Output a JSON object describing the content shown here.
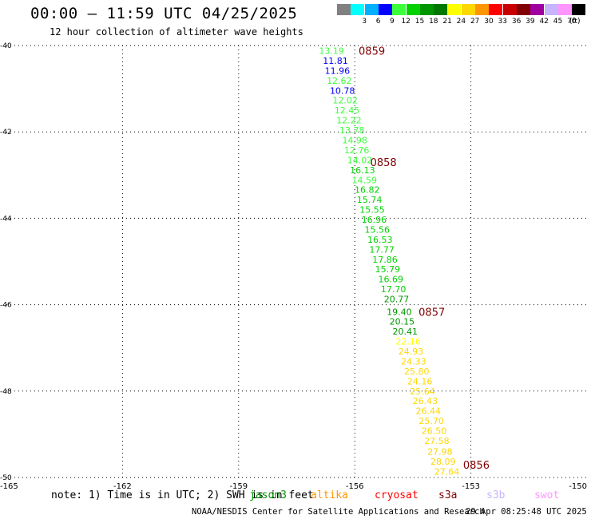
{
  "title": "00:00 – 11:59 UTC 04/25/2025",
  "subtitle": "12 hour collection of altimeter wave heights",
  "legend": {
    "unit": "(ft)",
    "entries": [
      {
        "label": "",
        "color": "#808080"
      },
      {
        "label": "3",
        "color": "#00ffff"
      },
      {
        "label": "6",
        "color": "#00b0ff"
      },
      {
        "label": "9",
        "color": "#0000ff"
      },
      {
        "label": "12",
        "color": "#3cff3c"
      },
      {
        "label": "15",
        "color": "#00d200"
      },
      {
        "label": "18",
        "color": "#009600"
      },
      {
        "label": "21",
        "color": "#007800"
      },
      {
        "label": "24",
        "color": "#ffff00"
      },
      {
        "label": "27",
        "color": "#ffd700"
      },
      {
        "label": "30",
        "color": "#ff9600"
      },
      {
        "label": "33",
        "color": "#ff0000"
      },
      {
        "label": "36",
        "color": "#c80000"
      },
      {
        "label": "39",
        "color": "#820000"
      },
      {
        "label": "42",
        "color": "#a000a0"
      },
      {
        "label": "45",
        "color": "#c8b4ff"
      },
      {
        "label": "70",
        "color": "#ff96ff"
      },
      {
        "label": "",
        "color": "#000000"
      }
    ]
  },
  "map": {
    "lon_range": [
      -165,
      -150
    ],
    "lat_range": [
      -50,
      -40
    ],
    "lon_ticks": [
      {
        "value": -165,
        "label": "-165"
      },
      {
        "value": -162,
        "label": "-162"
      },
      {
        "value": -159,
        "label": "-159"
      },
      {
        "value": -156,
        "label": "-156"
      },
      {
        "value": -153,
        "label": "-153"
      },
      {
        "value": -150,
        "label": "-150"
      }
    ],
    "lat_ticks": [
      {
        "value": -40,
        "label": "-40"
      },
      {
        "value": -42,
        "label": "-42"
      },
      {
        "value": -44,
        "label": "-44"
      },
      {
        "value": -46,
        "label": "-46"
      },
      {
        "value": -48,
        "label": "-48"
      },
      {
        "value": -50,
        "label": "-50"
      }
    ],
    "time_labels": [
      {
        "text": "0859",
        "lon": -155.9,
        "lat": -40.12
      },
      {
        "text": "0858",
        "lon": -155.6,
        "lat": -42.7
      },
      {
        "text": "0857",
        "lon": -154.35,
        "lat": -46.16
      },
      {
        "text": "0856",
        "lon": -153.2,
        "lat": -49.7
      }
    ],
    "observations": [
      {
        "value": "13.19",
        "lon": -156.6,
        "lat": -40.12,
        "color": "#3cff3c"
      },
      {
        "value": "11.81",
        "lon": -156.5,
        "lat": -40.35,
        "color": "#0000ff"
      },
      {
        "value": "11.96",
        "lon": -156.45,
        "lat": -40.58,
        "color": "#0000ff"
      },
      {
        "value": "12.62",
        "lon": -156.4,
        "lat": -40.81,
        "color": "#3cff3c"
      },
      {
        "value": "10.78",
        "lon": -156.32,
        "lat": -41.04,
        "color": "#0000ff"
      },
      {
        "value": "12.02",
        "lon": -156.25,
        "lat": -41.27,
        "color": "#3cff3c"
      },
      {
        "value": "12.45",
        "lon": -156.2,
        "lat": -41.5,
        "color": "#3cff3c"
      },
      {
        "value": "12.22",
        "lon": -156.15,
        "lat": -41.73,
        "color": "#3cff3c"
      },
      {
        "value": "13.78",
        "lon": -156.07,
        "lat": -41.96,
        "color": "#3cff3c"
      },
      {
        "value": "14.98",
        "lon": -156.0,
        "lat": -42.19,
        "color": "#3cff3c"
      },
      {
        "value": "12.76",
        "lon": -155.95,
        "lat": -42.42,
        "color": "#3cff3c"
      },
      {
        "value": "14.02",
        "lon": -155.87,
        "lat": -42.65,
        "color": "#3cff3c"
      },
      {
        "value": "16.13",
        "lon": -155.8,
        "lat": -42.88,
        "color": "#00d200"
      },
      {
        "value": "14.59",
        "lon": -155.75,
        "lat": -43.11,
        "color": "#3cff3c"
      },
      {
        "value": "16.82",
        "lon": -155.68,
        "lat": -43.34,
        "color": "#00d200"
      },
      {
        "value": "15.74",
        "lon": -155.62,
        "lat": -43.57,
        "color": "#00d200"
      },
      {
        "value": "15.55",
        "lon": -155.55,
        "lat": -43.8,
        "color": "#00d200"
      },
      {
        "value": "16.96",
        "lon": -155.5,
        "lat": -44.03,
        "color": "#00d200"
      },
      {
        "value": "15.56",
        "lon": -155.42,
        "lat": -44.26,
        "color": "#00d200"
      },
      {
        "value": "16.53",
        "lon": -155.35,
        "lat": -44.49,
        "color": "#00d200"
      },
      {
        "value": "17.77",
        "lon": -155.3,
        "lat": -44.72,
        "color": "#00d200"
      },
      {
        "value": "17.86",
        "lon": -155.22,
        "lat": -44.95,
        "color": "#00d200"
      },
      {
        "value": "15.79",
        "lon": -155.15,
        "lat": -45.18,
        "color": "#00d200"
      },
      {
        "value": "16.69",
        "lon": -155.07,
        "lat": -45.41,
        "color": "#00d200"
      },
      {
        "value": "17.70",
        "lon": -155.0,
        "lat": -45.64,
        "color": "#00d200"
      },
      {
        "value": "20.77",
        "lon": -154.92,
        "lat": -45.87,
        "color": "#009600"
      },
      {
        "value": "19.40",
        "lon": -154.85,
        "lat": -46.16,
        "color": "#009600"
      },
      {
        "value": "20.15",
        "lon": -154.78,
        "lat": -46.39,
        "color": "#009600"
      },
      {
        "value": "20.41",
        "lon": -154.7,
        "lat": -46.62,
        "color": "#009600"
      },
      {
        "value": "22.16",
        "lon": -154.62,
        "lat": -46.85,
        "color": "#ffff00"
      },
      {
        "value": "24.93",
        "lon": -154.55,
        "lat": -47.08,
        "color": "#ffd700"
      },
      {
        "value": "24.33",
        "lon": -154.48,
        "lat": -47.31,
        "color": "#ffd700"
      },
      {
        "value": "25.80",
        "lon": -154.4,
        "lat": -47.54,
        "color": "#ffd700"
      },
      {
        "value": "24.16",
        "lon": -154.32,
        "lat": -47.77,
        "color": "#ffd700"
      },
      {
        "value": "25.64",
        "lon": -154.25,
        "lat": -48.0,
        "color": "#ffd700"
      },
      {
        "value": "26.43",
        "lon": -154.18,
        "lat": -48.23,
        "color": "#ffd700"
      },
      {
        "value": "26.44",
        "lon": -154.1,
        "lat": -48.46,
        "color": "#ffd700"
      },
      {
        "value": "25.70",
        "lon": -154.02,
        "lat": -48.69,
        "color": "#ffd700"
      },
      {
        "value": "26.50",
        "lon": -153.95,
        "lat": -48.92,
        "color": "#ffd700"
      },
      {
        "value": "27.58",
        "lon": -153.88,
        "lat": -49.15,
        "color": "#ffd700"
      },
      {
        "value": "27.98",
        "lon": -153.8,
        "lat": -49.4,
        "color": "#ffd700"
      },
      {
        "value": "28.09",
        "lon": -153.72,
        "lat": -49.63,
        "color": "#ffd700"
      },
      {
        "value": "27.64",
        "lon": -153.62,
        "lat": -49.86,
        "color": "#ffd700"
      }
    ]
  },
  "bottom": {
    "note": "note: 1) Time is in UTC; 2) SWH is in feet",
    "satellites": [
      {
        "name": "jason3",
        "color": "#009600"
      },
      {
        "name": "altika",
        "color": "#ff9600"
      },
      {
        "name": "cryosat",
        "color": "#ff0000"
      },
      {
        "name": "s3a",
        "color": "#820000"
      },
      {
        "name": "s3b",
        "color": "#c8b4ff"
      },
      {
        "name": "swot",
        "color": "#ff96ff"
      }
    ],
    "credit": "NOAA/NESDIS Center for Satellite Applications and Research",
    "generated": "29 Apr 08:25:48 UTC 2025"
  }
}
